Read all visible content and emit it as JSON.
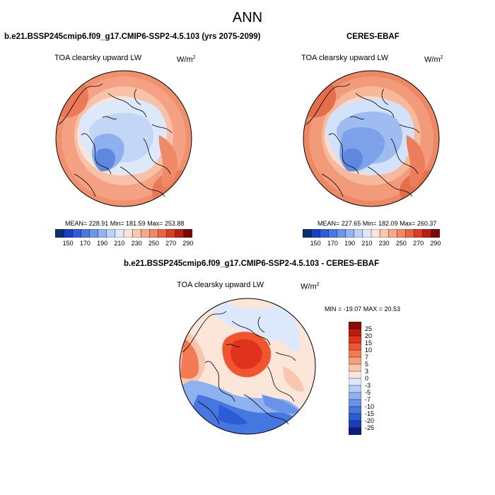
{
  "title": "ANN",
  "panels": [
    {
      "case": "b.e21.BSSP245cmip6.f09_g17.CMIP6-SSP2-4.5.103 (yrs 2075-2099)",
      "variable": "TOA clearsky upward LW",
      "unit_base": "W/m",
      "unit_exp": "2",
      "stats": "MEAN= 228.91   Min= 181.59   Max= 253.88"
    },
    {
      "case": "CERES-EBAF",
      "variable": "TOA clearsky upward LW",
      "unit_base": "W/m",
      "unit_exp": "2",
      "stats": "MEAN= 227.65   Min= 182.09   Max= 260.37"
    },
    {
      "case": "b.e21.BSSP245cmip6.f09_g17.CMIP6-SSP2-4.5.103 - CERES-EBAF",
      "variable": "TOA clearsky upward LW",
      "unit_base": "W/m",
      "unit_exp": "2",
      "stats": "MIN = -19.07  MAX =  20.53"
    }
  ],
  "colorbar": {
    "ticks": [
      "150",
      "170",
      "190",
      "210",
      "230",
      "250",
      "270",
      "290"
    ],
    "colors": [
      "#08306b",
      "#1a3fc7",
      "#2f5bd8",
      "#4a78e2",
      "#6a95e9",
      "#93b4f0",
      "#bcd3f6",
      "#dde9fb",
      "#fbe3d8",
      "#f8c8b0",
      "#f5a98a",
      "#f08866",
      "#e86444",
      "#d94026",
      "#b81e12",
      "#7a0a06"
    ]
  },
  "diff_colorbar": {
    "ticks": [
      "25",
      "20",
      "15",
      "10",
      "7",
      "5",
      "3",
      "0",
      "-3",
      "-5",
      "-7",
      "-10",
      "-15",
      "-20",
      "-25"
    ],
    "colors": [
      "#8b0a06",
      "#c11b10",
      "#e0331d",
      "#f0552e",
      "#f47a53",
      "#f6a07c",
      "#f8c6ac",
      "#fbe6d9",
      "#dce8fb",
      "#b6cdf6",
      "#8eb1f0",
      "#6893e8",
      "#4676e0",
      "#2b5cd6",
      "#1b3fb8",
      "#0b1e78"
    ]
  },
  "colors": {
    "ocean_light": "#dbe7f8",
    "arctic_blue": "#6e96e3",
    "warm_ring": "#f2a182",
    "hot": "#e8643f"
  }
}
